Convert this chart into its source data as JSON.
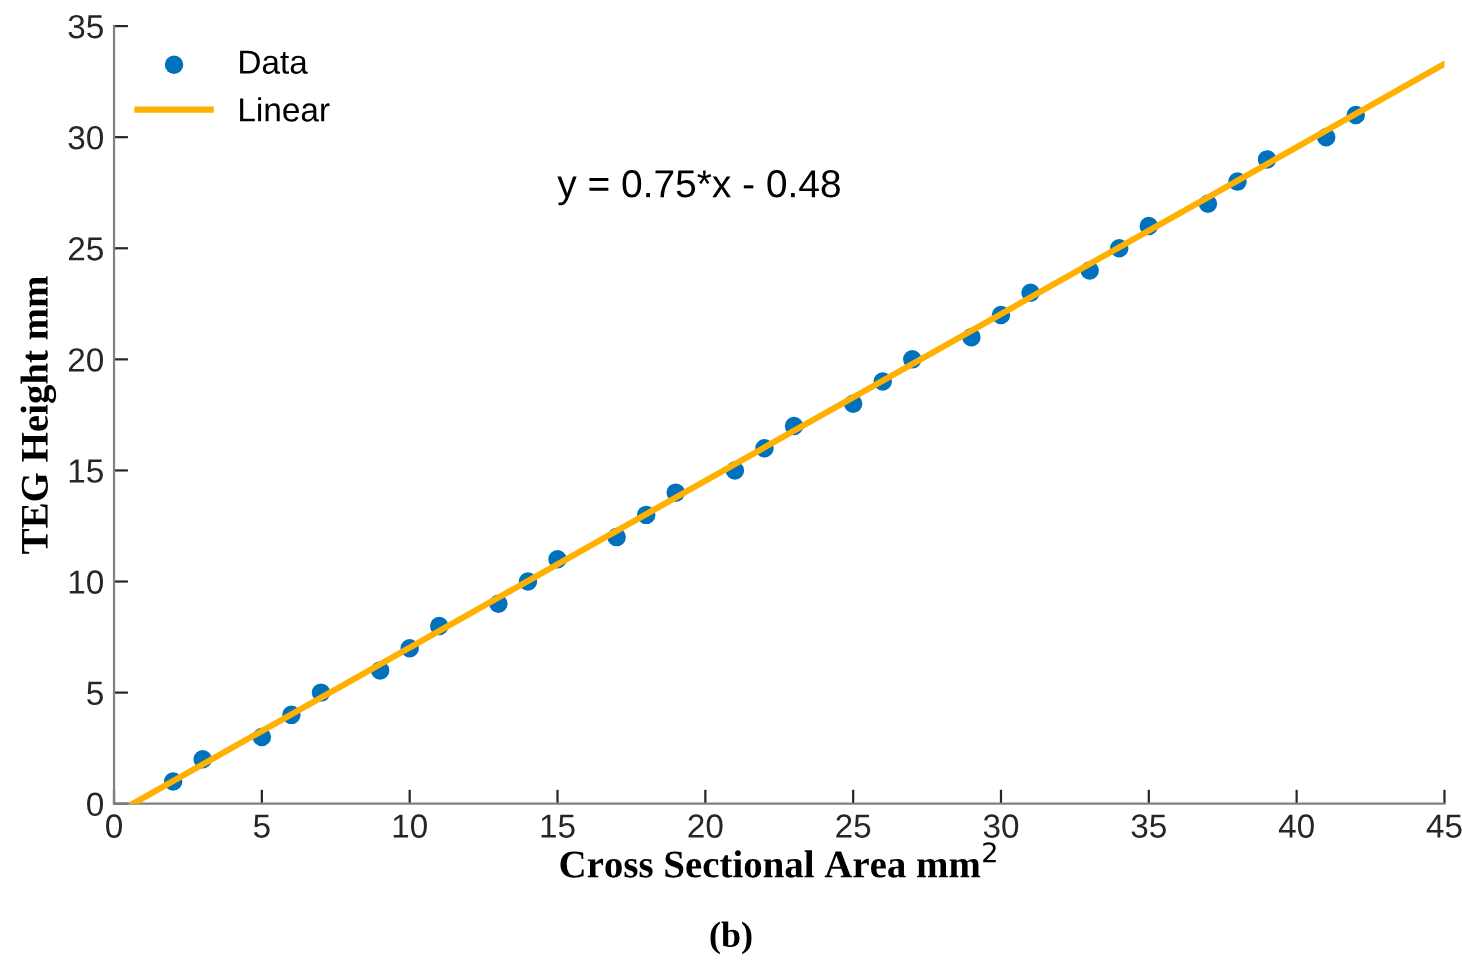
{
  "chart_data": {
    "type": "scatter",
    "xlabel": "Cross Sectional Area mm$^{2}$",
    "ylabel": "TEG Height mm",
    "annotations": [
      "y = 0.75*x - 0.48",
      "(b)"
    ],
    "xlim": [
      0,
      45
    ],
    "ylim": [
      0,
      35
    ],
    "xticks": [
      0,
      5,
      10,
      15,
      20,
      25,
      30,
      35,
      40,
      45
    ],
    "yticks": [
      0,
      5,
      10,
      15,
      20,
      25,
      30,
      35
    ],
    "grid": false,
    "legend": "top left",
    "series": [
      {
        "name": "Data",
        "color": "#0072bd",
        "marker": "circle",
        "x": [
          2,
          3,
          5,
          6,
          7,
          9,
          10,
          11,
          13,
          14,
          15,
          17,
          18,
          19,
          21,
          22,
          23,
          25,
          26,
          27,
          29,
          30,
          31,
          33,
          34,
          35,
          37,
          38,
          39,
          41,
          42
        ],
        "values": [
          1,
          2,
          3,
          4,
          5,
          6,
          7,
          8,
          9,
          10,
          11,
          12,
          13,
          14,
          15,
          16,
          17,
          18,
          19,
          20,
          21,
          22,
          23,
          24,
          25,
          26,
          27,
          28,
          29,
          30,
          31
        ]
      },
      {
        "name": "Linear",
        "type": "line",
        "color": "#ffb000",
        "line_style": "solid",
        "x": [
          0.64,
          45
        ],
        "values": [
          0,
          33.3
        ]
      }
    ]
  }
}
